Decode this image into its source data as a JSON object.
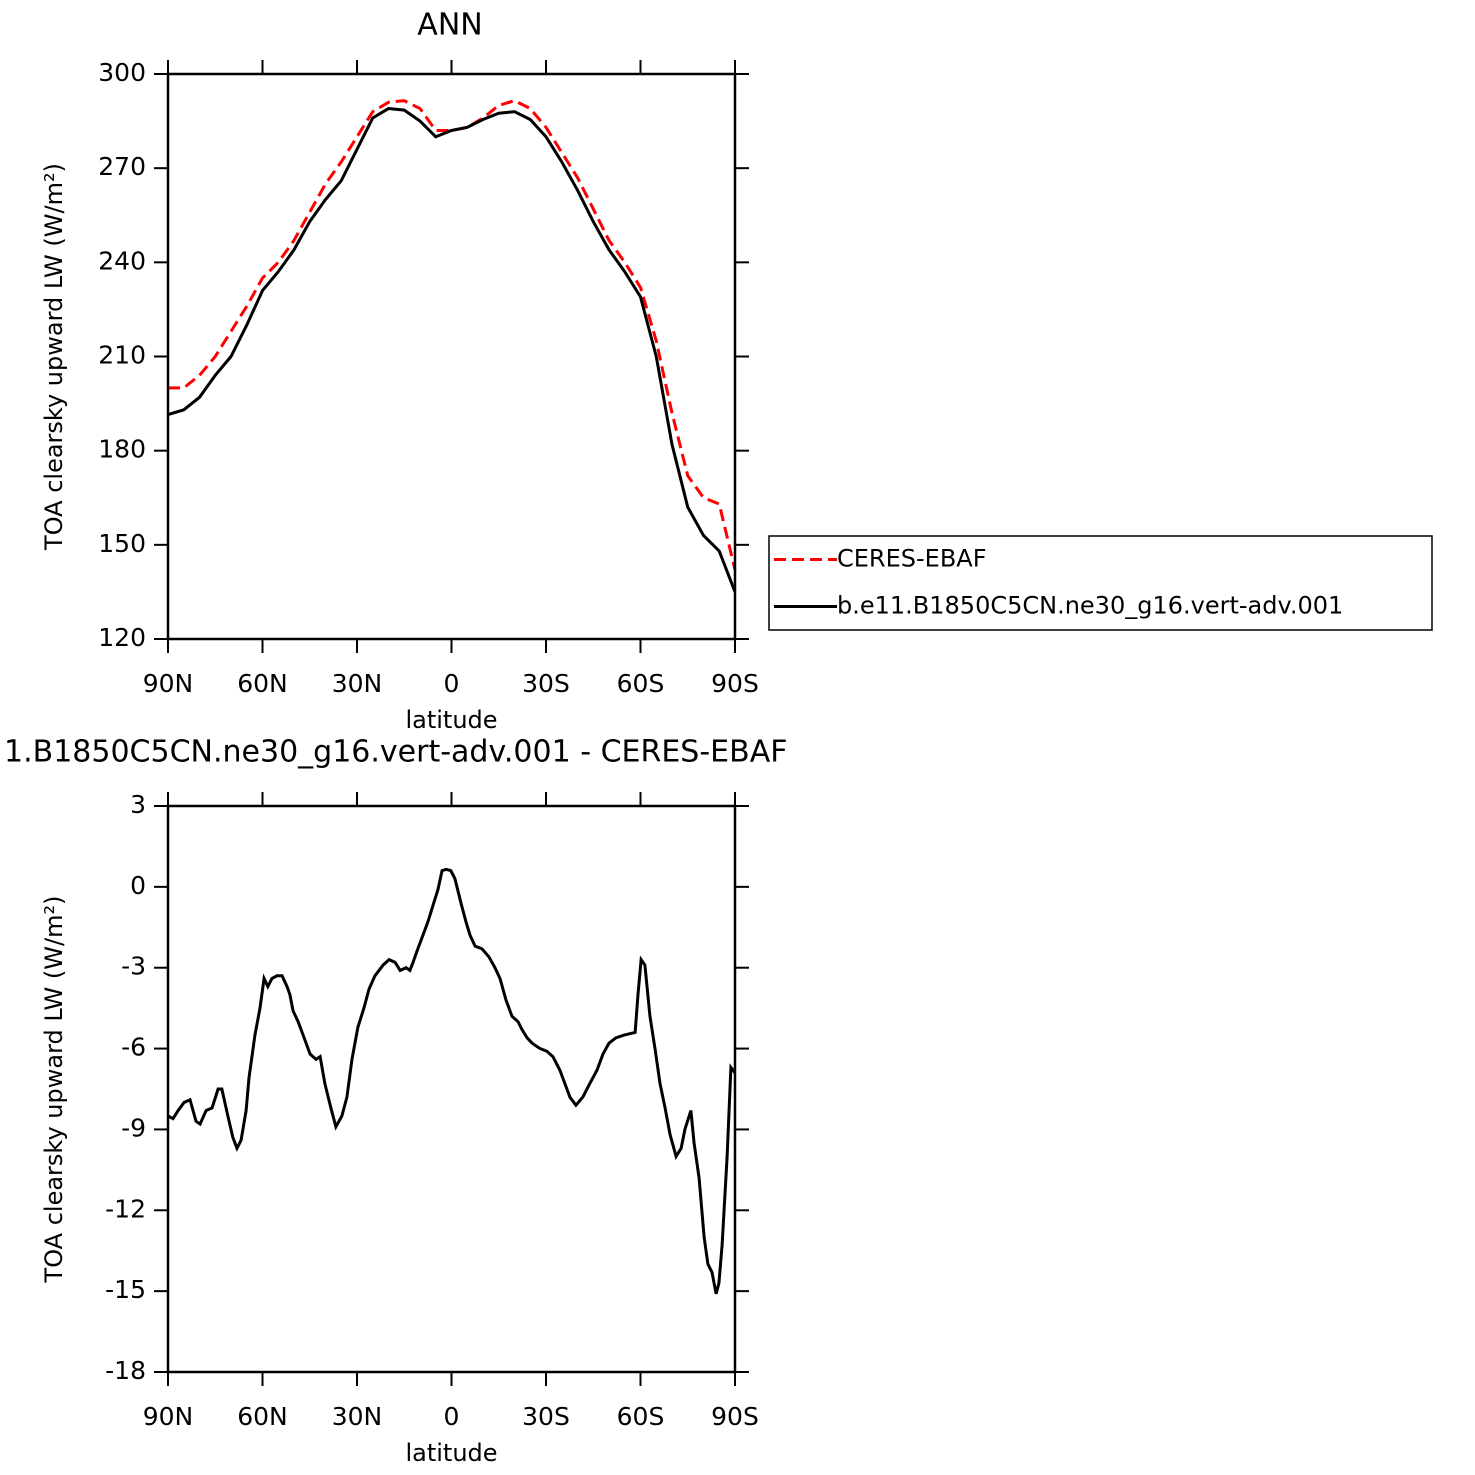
{
  "chart_data": [
    {
      "type": "line",
      "title": "ANN",
      "xlabel": "latitude",
      "ylabel": "TOA clearsky upward LW (W/m²)",
      "x": [
        90,
        85,
        80,
        75,
        70,
        65,
        60,
        55,
        50,
        45,
        40,
        35,
        30,
        25,
        20,
        15,
        10,
        5,
        0,
        -5,
        -10,
        -15,
        -20,
        -25,
        -30,
        -35,
        -40,
        -45,
        -50,
        -55,
        -60,
        -65,
        -70,
        -75,
        -80,
        -85,
        -90
      ],
      "series": [
        {
          "name": "CERES-EBAF",
          "color": "#ff0000",
          "style": "dashed",
          "values": [
            200,
            200,
            204,
            210,
            218,
            226,
            235,
            240,
            247,
            256,
            265,
            272,
            280,
            288,
            291,
            291.5,
            289,
            282,
            282,
            283,
            286,
            290,
            291.5,
            289,
            283,
            275,
            267,
            257,
            247,
            240,
            232,
            215,
            192,
            172,
            165,
            163,
            142
          ]
        },
        {
          "name": "b.e11.B1850C5CN.ne30_g16.vert-adv.001",
          "color": "#000000",
          "style": "solid",
          "values": [
            191.5,
            193,
            197,
            204,
            210,
            220,
            231,
            237,
            244,
            253,
            260,
            266,
            276,
            286,
            289,
            288.5,
            285,
            280,
            282,
            283,
            285.5,
            287.5,
            288,
            285.5,
            280,
            272,
            263,
            253,
            244,
            237,
            229,
            210,
            182,
            162,
            153,
            148,
            135
          ]
        }
      ],
      "xlim": [
        90,
        -90
      ],
      "xticks": [
        {
          "value": 90,
          "label": "90N"
        },
        {
          "value": 60,
          "label": "60N"
        },
        {
          "value": 30,
          "label": "30N"
        },
        0,
        {
          "value": -30,
          "label": "30S"
        },
        {
          "value": -60,
          "label": "60S"
        },
        {
          "value": -90,
          "label": "90S"
        }
      ],
      "ylim": [
        120,
        300
      ],
      "yticks": [
        120,
        150,
        180,
        210,
        240,
        270,
        300
      ],
      "legend": "right"
    },
    {
      "type": "line",
      "title": "1.B1850C5CN.ne30_g16.vert-adv.001 - CERES-EBAF",
      "xlabel": "latitude",
      "ylabel": "TOA clearsky upward LW (W/m²)",
      "x": [
        90,
        88.4,
        86.8,
        84.9,
        83.0,
        81.1,
        79.8,
        77.9,
        76.0,
        74.1,
        72.9,
        71.0,
        69.4,
        68.1,
        66.8,
        65.2,
        64.3,
        62.4,
        60.8,
        59.5,
        58.3,
        57.0,
        55.4,
        53.8,
        52.2,
        51.3,
        50.3,
        48.7,
        47.1,
        44.9,
        43.0,
        41.7,
        40.2,
        38.3,
        36.7,
        34.8,
        33.2,
        31.6,
        29.7,
        27.8,
        26.2,
        24.3,
        21.7,
        19.8,
        17.9,
        16.3,
        14.4,
        13.2,
        12.2,
        11.0,
        9.4,
        7.5,
        5.9,
        4.3,
        3.0,
        1.7,
        0.2,
        -1.1,
        -3.0,
        -4.6,
        -5.9,
        -7.5,
        -9.7,
        -11.9,
        -13.8,
        -15.4,
        -17.3,
        -19.2,
        -21.1,
        -22.4,
        -24.0,
        -25.6,
        -28.1,
        -30.3,
        -32.2,
        -34.4,
        -36.0,
        -37.6,
        -39.5,
        -41.7,
        -43.9,
        -46.2,
        -48.1,
        -50.0,
        -52.2,
        -54.8,
        -58.3,
        -59.2,
        -60.2,
        -61.4,
        -63.0,
        -64.6,
        -66.2,
        -67.8,
        -69.4,
        -71.3,
        -72.9,
        -74.1,
        -76.0,
        -77.0,
        -78.6,
        -80.2,
        -81.4,
        -82.7,
        -84.0,
        -84.9,
        -85.9,
        -87.5,
        -88.7,
        -90
      ],
      "series": [
        {
          "color": "#000000",
          "values": [
            -8.5,
            -8.6,
            -8.3,
            -8.0,
            -7.9,
            -8.7,
            -8.8,
            -8.3,
            -8.2,
            -7.5,
            -7.5,
            -8.5,
            -9.3,
            -9.7,
            -9.4,
            -8.3,
            -7.1,
            -5.5,
            -4.5,
            -3.4,
            -3.7,
            -3.4,
            -3.3,
            -3.3,
            -3.7,
            -4.0,
            -4.6,
            -5.0,
            -5.5,
            -6.2,
            -6.4,
            -6.3,
            -7.3,
            -8.2,
            -8.9,
            -8.5,
            -7.8,
            -6.4,
            -5.2,
            -4.5,
            -3.8,
            -3.3,
            -2.9,
            -2.7,
            -2.8,
            -3.1,
            -3.0,
            -3.1,
            -2.8,
            -2.4,
            -1.9,
            -1.3,
            -0.7,
            -0.1,
            0.6,
            0.65,
            0.6,
            0.3,
            -0.6,
            -1.3,
            -1.8,
            -2.2,
            -2.3,
            -2.6,
            -3.0,
            -3.4,
            -4.2,
            -4.8,
            -5.0,
            -5.3,
            -5.6,
            -5.8,
            -6.0,
            -6.1,
            -6.3,
            -6.8,
            -7.3,
            -7.8,
            -8.1,
            -7.8,
            -7.3,
            -6.8,
            -6.2,
            -5.8,
            -5.6,
            -5.5,
            -5.4,
            -4.0,
            -2.7,
            -2.9,
            -4.8,
            -6.0,
            -7.3,
            -8.2,
            -9.2,
            -10.0,
            -9.7,
            -9.0,
            -8.3,
            -9.5,
            -10.8,
            -13.0,
            -14.0,
            -14.3,
            -15.1,
            -14.7,
            -13.3,
            -10.0,
            -6.7,
            -6.9
          ]
        }
      ],
      "xlim": [
        90,
        -90
      ],
      "xticks": [
        {
          "value": 90,
          "label": "90N"
        },
        {
          "value": 60,
          "label": "60N"
        },
        {
          "value": 30,
          "label": "30N"
        },
        0,
        {
          "value": -30,
          "label": "30S"
        },
        {
          "value": -60,
          "label": "60S"
        },
        {
          "value": -90,
          "label": "90S"
        }
      ],
      "ylim": [
        -18,
        3
      ],
      "yticks": [
        -18,
        -15,
        -12,
        -9,
        -6,
        -3,
        0,
        3
      ]
    }
  ]
}
